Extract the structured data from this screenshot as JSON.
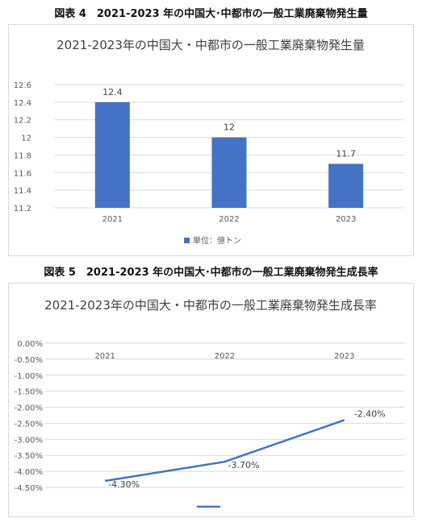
{
  "captions": {
    "fig4": "図表 4　2021-2023 年の中国大･中都市の一般工業廃棄物発生量",
    "fig5": "図表 5　2021-2023 年の中国大･中都市の一般工業廃棄物発生成長率"
  },
  "colors": {
    "series": "#4472c4",
    "grid": "#d9d9d9",
    "text": "#595959"
  },
  "chart_data": [
    {
      "type": "bar",
      "title": "2021-2023年の中国大・中都市の一般工業廃棄物発生量",
      "categories": [
        "2021",
        "2022",
        "2023"
      ],
      "series": [
        {
          "name": "単位：億トン",
          "values": [
            12.4,
            12,
            11.7
          ]
        }
      ],
      "data_labels": [
        "12.4",
        "12",
        "11.7"
      ],
      "ylim": [
        11.2,
        12.6
      ],
      "yticks": [
        "11.2",
        "11.4",
        "11.6",
        "11.8",
        "12",
        "12.2",
        "12.4",
        "12.6"
      ],
      "grid": true,
      "legend": "bottom"
    },
    {
      "type": "line",
      "title": "2021-2023年の中国大・中都市の一般工業廃棄物発生成長率",
      "categories": [
        "2021",
        "2022",
        "2023"
      ],
      "series": [
        {
          "name": "",
          "values": [
            -4.3,
            -3.7,
            -2.4
          ]
        }
      ],
      "data_labels": [
        "-4.30%",
        "-3.70%",
        "-2.40%"
      ],
      "ylim": [
        -4.5,
        0
      ],
      "yticks": [
        "0.00%",
        "-0.50%",
        "-1.00%",
        "-1.50%",
        "-2.00%",
        "-2.50%",
        "-3.00%",
        "-3.50%",
        "-4.00%",
        "-4.50%"
      ],
      "grid": true,
      "legend": "bottom"
    }
  ]
}
